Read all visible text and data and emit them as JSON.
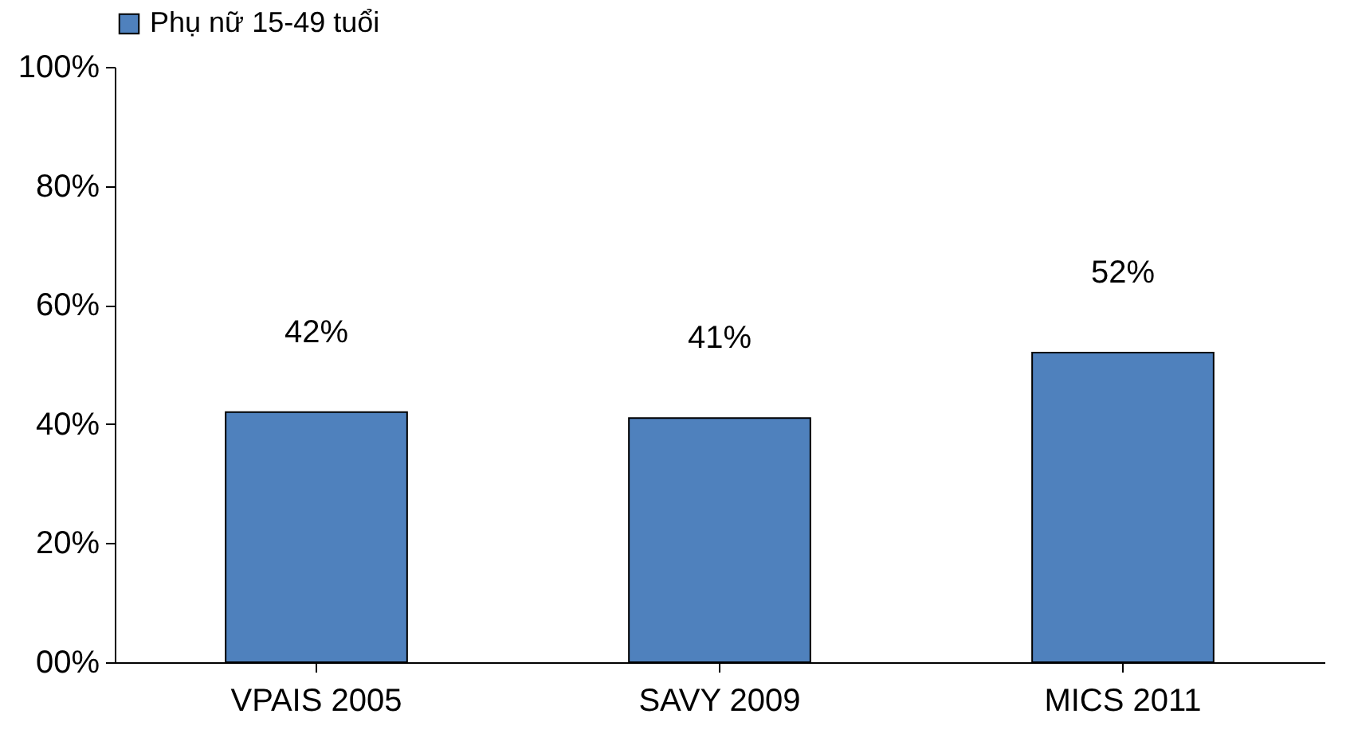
{
  "chart_data": {
    "type": "bar",
    "categories": [
      "VPAIS 2005",
      "SAVY 2009",
      "MICS 2011"
    ],
    "series": [
      {
        "name": "Phụ nữ 15-49 tuổi",
        "color": "#4f81bd",
        "values": [
          42,
          41,
          52
        ],
        "value_labels": [
          "42%",
          "41%",
          "52%"
        ]
      }
    ],
    "ylim": [
      0,
      100
    ],
    "yticks": [
      {
        "value": 0,
        "label": "00%"
      },
      {
        "value": 20,
        "label": "20%"
      },
      {
        "value": 40,
        "label": "40%"
      },
      {
        "value": 60,
        "label": "60%"
      },
      {
        "value": 80,
        "label": "80%"
      },
      {
        "value": 100,
        "label": "100%"
      }
    ],
    "legend": "top",
    "grid": false
  }
}
